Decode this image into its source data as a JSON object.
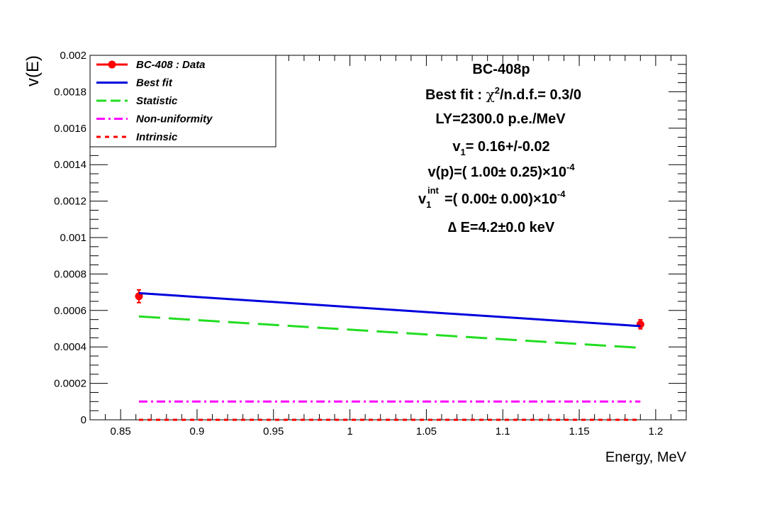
{
  "chart_data": {
    "type": "line",
    "xlabel": "Energy, MeV",
    "ylabel": "v(E)",
    "xlim": [
      0.83,
      1.22
    ],
    "ylim": [
      0,
      0.002
    ],
    "x_ticks": [
      "0.85",
      "0.9",
      "0.95",
      "1",
      "1.05",
      "1.1",
      "1.15",
      "1.2"
    ],
    "y_ticks": [
      "0",
      "0.0002",
      "0.0004",
      "0.0006",
      "0.0008",
      "0.001",
      "0.0012",
      "0.0014",
      "0.0016",
      "0.0018",
      "0.002"
    ],
    "grid": false,
    "legend_position": "top-left",
    "series": [
      {
        "name": "BC-408 : Data",
        "kind": "points",
        "color": "#ff0000",
        "x": [
          0.862,
          1.19
        ],
        "y": [
          0.000678,
          0.000524
        ],
        "err": [
          3.5e-05,
          2.5e-05
        ]
      },
      {
        "name": "Best fit",
        "kind": "line",
        "dash": "solid",
        "color": "#0000dd",
        "x": [
          0.862,
          1.19
        ],
        "y": [
          0.000695,
          0.000514
        ]
      },
      {
        "name": "Statistic",
        "kind": "line",
        "dash": "long-dash",
        "color": "#22dd22",
        "x": [
          0.862,
          1.19
        ],
        "y": [
          0.000567,
          0.000395
        ]
      },
      {
        "name": "Non-uniformity",
        "kind": "line",
        "dash": "dash-dot",
        "color": "#ff00ff",
        "x": [
          0.862,
          1.19
        ],
        "y": [
          0.0001,
          0.0001
        ]
      },
      {
        "name": "Intrinsic",
        "kind": "line",
        "dash": "short-dash",
        "color": "#ff0000",
        "x": [
          0.862,
          1.19
        ],
        "y": [
          0.0,
          0.0
        ]
      }
    ],
    "annotations": {
      "title": "BC-408p",
      "best_fit_label": "Best fit : ",
      "chi2_symbol": "χ",
      "chi2_exp": "2",
      "chi2_tail": "/n.d.f.=    0.3/0",
      "ly": "LY=2300.0 p.e./MeV",
      "v1_base": "v",
      "v1_sub": "1",
      "v1_value": "= 0.16+/-0.02",
      "vp_main": "v(p)=( 1.00± 0.25)×10",
      "vp_exp": "-4",
      "v1int_base": "v",
      "v1int_sub": "1",
      "v1int_sup": "int",
      "v1int_main": "=( 0.00± 0.00)×10",
      "v1int_exp": "-4",
      "delta_e": "∆ E=4.2±0.0 keV"
    }
  }
}
